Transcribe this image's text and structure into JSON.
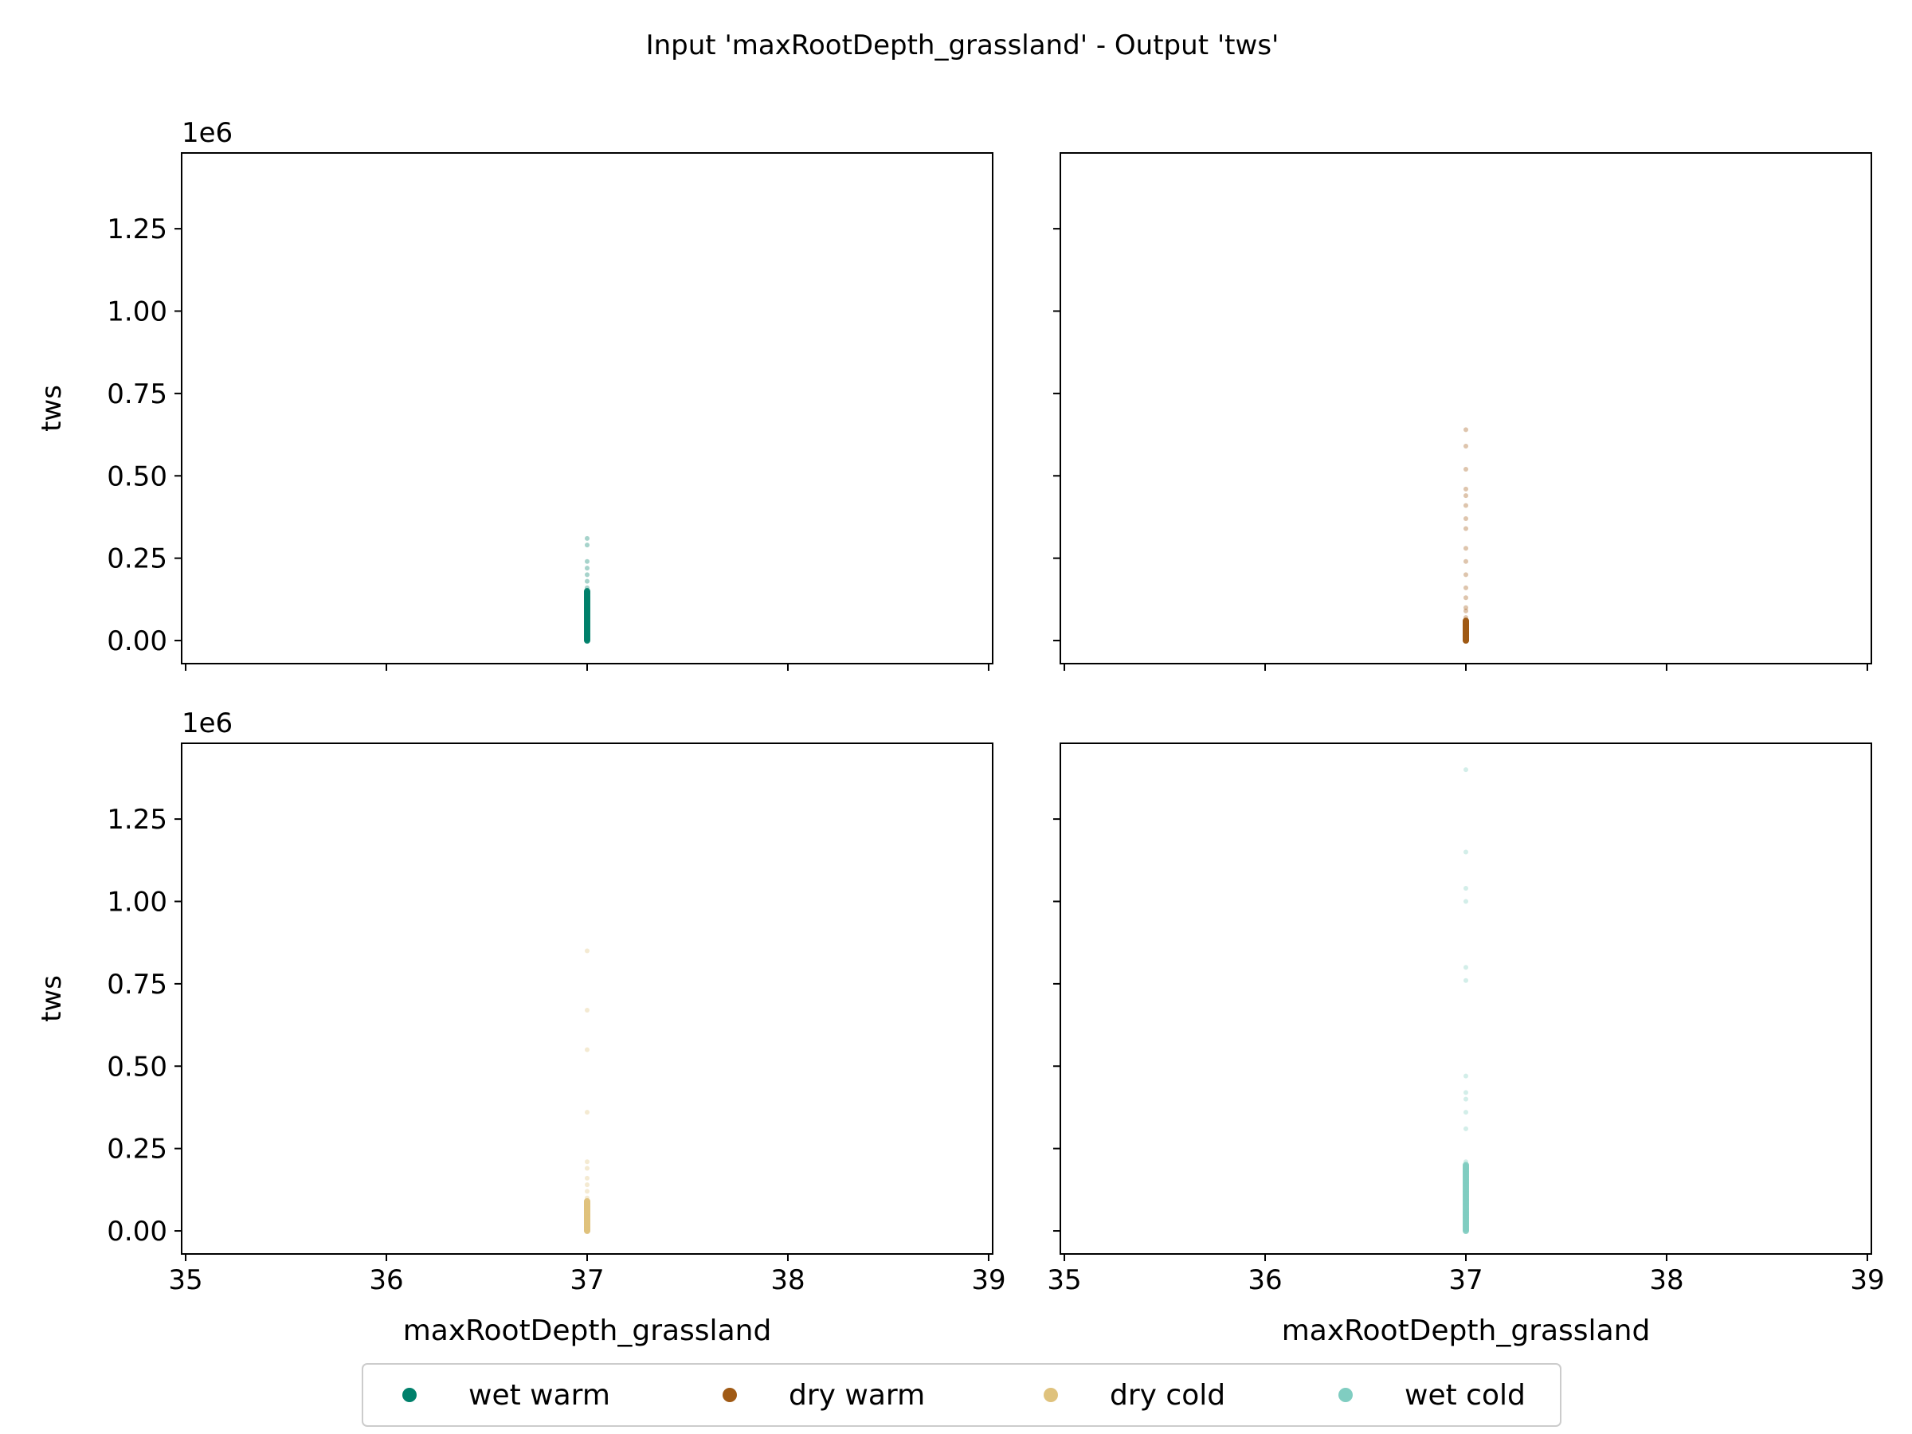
{
  "title": "Input 'maxRootDepth_grassland' - Output 'tws'",
  "chart_data": {
    "type": "scatter",
    "layout": "2x2 grid, shared axes",
    "xlabel": "maxRootDepth_grassland",
    "ylabel": "tws",
    "y_offset_label": "1e6",
    "xlim": [
      34.98,
      39.02
    ],
    "ylim": [
      -0.07,
      1.48
    ],
    "x_ticks": [
      35,
      36,
      37,
      38,
      39
    ],
    "x_tick_labels": [
      "35",
      "36",
      "37",
      "38",
      "39"
    ],
    "y_ticks": [
      0.0,
      0.25,
      0.5,
      0.75,
      1.0,
      1.25
    ],
    "y_tick_labels": [
      "0.00",
      "0.25",
      "0.50",
      "0.75",
      "1.00",
      "1.25"
    ],
    "grid": false,
    "legend_position": "bottom-center",
    "panels": [
      {
        "series": "wet warm",
        "color": "#00806b",
        "x": 37,
        "y_dense_range": [
          0.0,
          0.15
        ],
        "y_outliers": [
          0.16,
          0.18,
          0.2,
          0.22,
          0.24,
          0.29,
          0.31
        ]
      },
      {
        "series": "dry warm",
        "color": "#a05a15",
        "x": 37,
        "y_dense_range": [
          0.0,
          0.06
        ],
        "y_outliers": [
          0.07,
          0.09,
          0.1,
          0.13,
          0.16,
          0.2,
          0.24,
          0.28,
          0.34,
          0.37,
          0.41,
          0.44,
          0.46,
          0.52,
          0.59,
          0.64
        ]
      },
      {
        "series": "dry cold",
        "color": "#dfc27d",
        "x": 37,
        "y_dense_range": [
          0.0,
          0.09
        ],
        "y_outliers": [
          0.1,
          0.12,
          0.14,
          0.16,
          0.19,
          0.21,
          0.36,
          0.55,
          0.67,
          0.85
        ]
      },
      {
        "series": "wet cold",
        "color": "#80cdc1",
        "x": 37,
        "y_dense_range": [
          0.0,
          0.2
        ],
        "y_outliers": [
          0.21,
          0.31,
          0.36,
          0.4,
          0.42,
          0.47,
          0.76,
          0.8,
          1.0,
          1.04,
          1.15,
          1.4
        ]
      }
    ],
    "legend": [
      {
        "label": "wet warm",
        "color": "#00806b"
      },
      {
        "label": "dry warm",
        "color": "#a05a15"
      },
      {
        "label": "dry cold",
        "color": "#dfc27d"
      },
      {
        "label": "wet cold",
        "color": "#80cdc1"
      }
    ]
  }
}
